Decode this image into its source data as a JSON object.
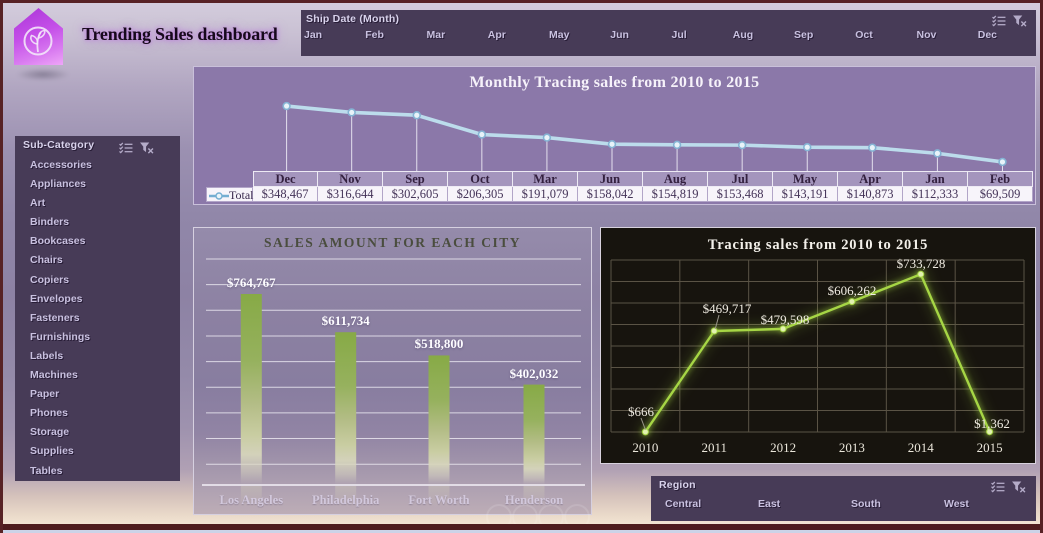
{
  "header": {
    "title": "Trending Sales dashboard"
  },
  "slicers": {
    "ship_date": {
      "title": "Ship Date (Month)",
      "items": [
        "Jan",
        "Feb",
        "Mar",
        "Apr",
        "May",
        "Jun",
        "Jul",
        "Aug",
        "Sep",
        "Oct",
        "Nov",
        "Dec"
      ],
      "icons": [
        "multi-select-icon",
        "clear-filter-icon"
      ]
    },
    "sub_category": {
      "title": "Sub-Category",
      "items": [
        "Accessories",
        "Appliances",
        "Art",
        "Binders",
        "Bookcases",
        "Chairs",
        "Copiers",
        "Envelopes",
        "Fasteners",
        "Furnishings",
        "Labels",
        "Machines",
        "Paper",
        "Phones",
        "Storage",
        "Supplies",
        "Tables"
      ],
      "icons": [
        "multi-select-icon",
        "clear-filter-icon"
      ]
    },
    "region": {
      "title": "Region",
      "items": [
        "Central",
        "East",
        "South",
        "West"
      ],
      "icons": [
        "multi-select-icon",
        "clear-filter-icon"
      ]
    }
  },
  "chart_data": [
    {
      "type": "line",
      "title": "Monthly Tracing sales from 2010 to 2015",
      "legend": "Total",
      "categories": [
        "Dec",
        "Nov",
        "Sep",
        "Oct",
        "Mar",
        "Jun",
        "Aug",
        "Jul",
        "May",
        "Apr",
        "Jan",
        "Feb"
      ],
      "values": [
        348467,
        316644,
        302605,
        206305,
        191079,
        158042,
        154819,
        153468,
        143191,
        140873,
        112333,
        69509
      ],
      "labels": [
        "$348,467",
        "$316,644",
        "$302,605",
        "$206,305",
        "$191,079",
        "$158,042",
        "$154,819",
        "$153,468",
        "$143,191",
        "$140,873",
        "$112,333",
        "$69,509"
      ],
      "ylim": [
        0,
        400000
      ],
      "line_color": "#bcdcec"
    },
    {
      "type": "bar",
      "title": "SALES AMOUNT  FOR EACH CITY",
      "categories": [
        "Los Angeles",
        "Philadelphia",
        "Fort Worth",
        "Henderson"
      ],
      "values": [
        764767,
        611734,
        518800,
        402032
      ],
      "labels": [
        "$764,767",
        "$611,734",
        "$518,800",
        "$402,032"
      ],
      "ylim": [
        0,
        900000
      ],
      "bar_color": "#8aab49",
      "grid": true
    },
    {
      "type": "line",
      "title": "Tracing sales from 2010 to 2015",
      "categories": [
        "2010",
        "2011",
        "2012",
        "2013",
        "2014",
        "2015"
      ],
      "values": [
        666,
        469717,
        479598,
        606262,
        733728,
        1362
      ],
      "labels": [
        "$666",
        "$469,717",
        "$479,598",
        "$606,262",
        "$733,728",
        "$1,362"
      ],
      "ylim": [
        0,
        800000
      ],
      "line_color": "#a6d645",
      "grid": true
    }
  ]
}
